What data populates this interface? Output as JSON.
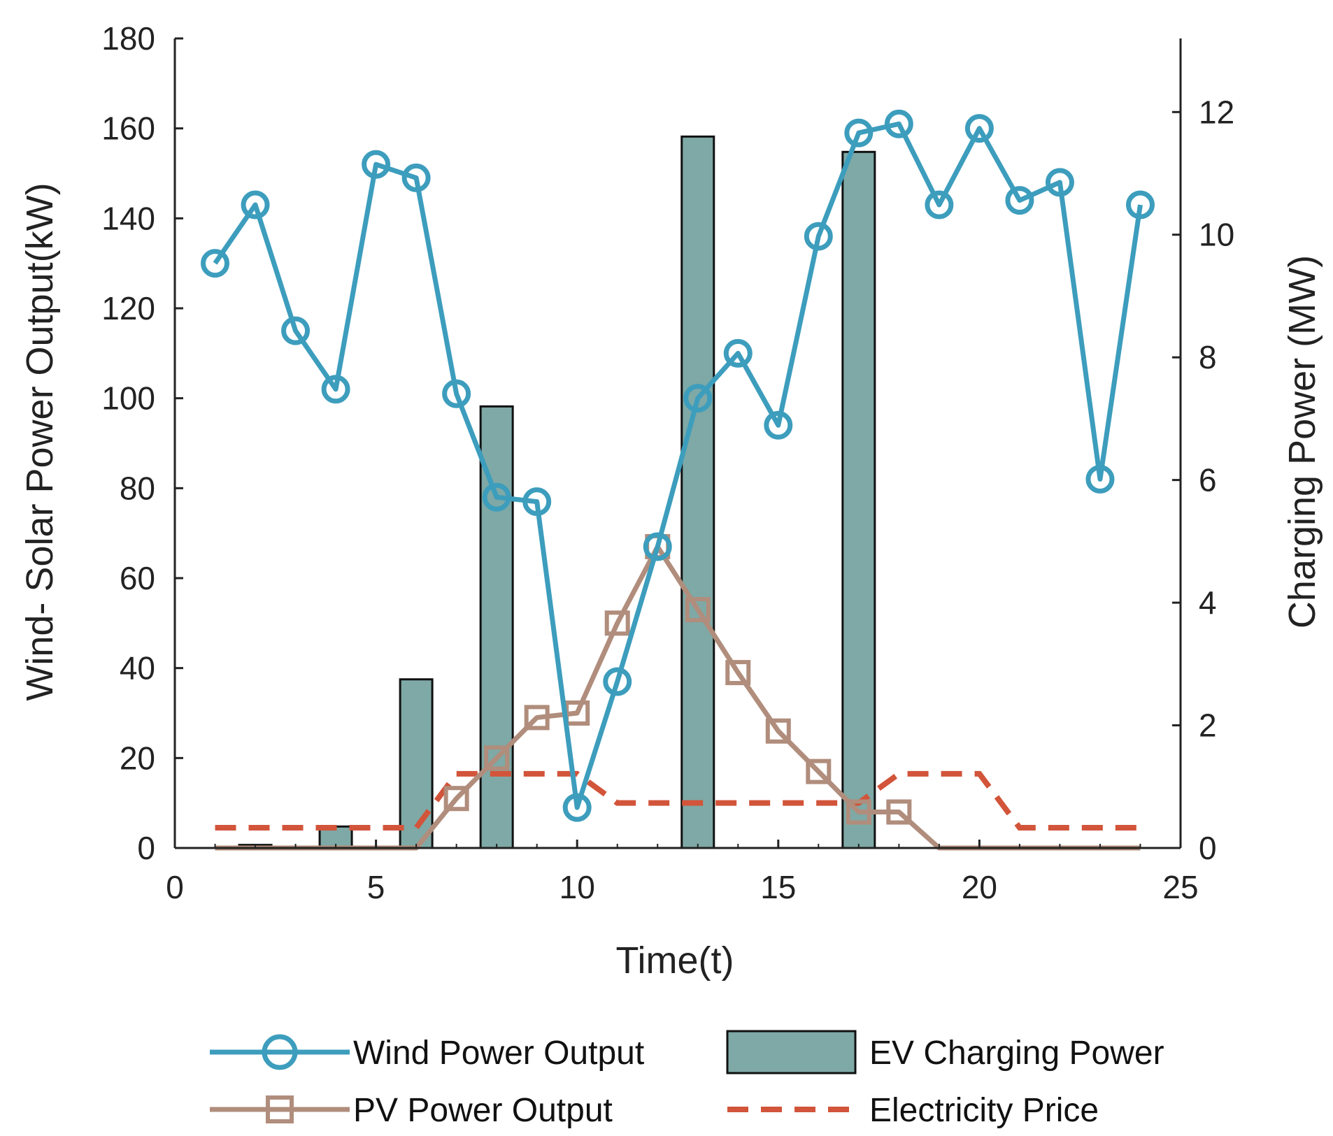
{
  "chart_data": {
    "type": "bar+line",
    "x": [
      1,
      2,
      3,
      4,
      5,
      6,
      7,
      8,
      9,
      10,
      11,
      12,
      13,
      14,
      15,
      16,
      17,
      18,
      19,
      20,
      21,
      22,
      23,
      24
    ],
    "xlabel": "Time(t)",
    "ylabel_left": "Wind- Solar Power Output(kW)",
    "ylabel_right": "Charging Power (MW)",
    "xlim": [
      0,
      25
    ],
    "ylim_left": [
      0,
      180
    ],
    "ylim_right": [
      0,
      13.2
    ],
    "xticks": [
      0,
      5,
      10,
      15,
      20,
      25
    ],
    "yticks_left": [
      0,
      20,
      40,
      60,
      80,
      100,
      120,
      140,
      160,
      180
    ],
    "yticks_right": [
      0,
      2,
      4,
      6,
      8,
      10,
      12
    ],
    "grid": false,
    "legend_position": "bottom",
    "series": [
      {
        "name": "Wind Power Output",
        "kind": "line",
        "axis": "left",
        "marker": "circle",
        "color": "#3d9dbd",
        "values": [
          130,
          143,
          115,
          102,
          152,
          149,
          101,
          78,
          77,
          9,
          37,
          67,
          100,
          110,
          94,
          136,
          159,
          161,
          143,
          160,
          144,
          148,
          82,
          143
        ]
      },
      {
        "name": "PV Power Output",
        "kind": "line",
        "axis": "left",
        "marker": "square",
        "color": "#b08d7c",
        "values": [
          0,
          0,
          0,
          0,
          0,
          0,
          11,
          20,
          29,
          30,
          50,
          67,
          53,
          39,
          26,
          17,
          8,
          8,
          0,
          0,
          0,
          0,
          0,
          0
        ]
      },
      {
        "name": "EV Charging Power",
        "kind": "bar",
        "axis": "right",
        "color": "#7ea9a6",
        "values": [
          0,
          0.05,
          0,
          0.35,
          0,
          2.75,
          0,
          7.2,
          0,
          0,
          0,
          0,
          11.6,
          0,
          0,
          0,
          11.35,
          0,
          0,
          0,
          0,
          0,
          0,
          0
        ]
      },
      {
        "name": "Electricity Price",
        "kind": "dashed-line",
        "axis": "left",
        "color": "#d2543a",
        "values": [
          4.5,
          4.5,
          4.5,
          4.5,
          4.5,
          4.5,
          16.5,
          16.5,
          16.5,
          16.5,
          10,
          10,
          10,
          10,
          10,
          10,
          10,
          16.5,
          16.5,
          16.5,
          4.5,
          4.5,
          4.5,
          4.5
        ]
      }
    ]
  },
  "legend": [
    {
      "label": "Wind Power Output",
      "symbol": "line-circle"
    },
    {
      "label": "EV Charging Power",
      "symbol": "bar"
    },
    {
      "label": "PV Power Output",
      "symbol": "line-square"
    },
    {
      "label": "Electricity Price",
      "symbol": "dashed"
    }
  ],
  "colors": {
    "wind": "#3d9dbd",
    "pv": "#b08d7c",
    "ev": "#7ea9a6",
    "price": "#d2543a",
    "axis": "#222222"
  }
}
